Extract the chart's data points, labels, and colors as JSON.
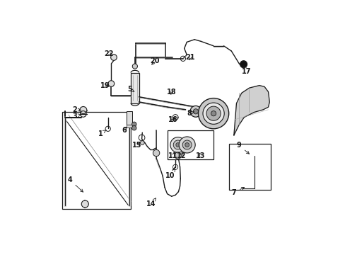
{
  "bg_color": "#ffffff",
  "line_color": "#1a1a1a",
  "fig_width": 4.89,
  "fig_height": 3.6,
  "dpi": 100,
  "label_arrows": {
    "1": {
      "lxy": [
        0.215,
        0.475
      ],
      "pxy": [
        0.245,
        0.495
      ]
    },
    "2": {
      "lxy": [
        0.115,
        0.57
      ],
      "pxy": [
        0.148,
        0.568
      ]
    },
    "3": {
      "lxy": [
        0.115,
        0.545
      ],
      "pxy": [
        0.148,
        0.553
      ]
    },
    "4": {
      "lxy": [
        0.095,
        0.295
      ],
      "pxy": [
        0.155,
        0.24
      ]
    },
    "5": {
      "lxy": [
        0.33,
        0.65
      ],
      "pxy": [
        0.35,
        0.64
      ]
    },
    "6": {
      "lxy": [
        0.31,
        0.49
      ],
      "pxy": [
        0.325,
        0.51
      ]
    },
    "7": {
      "lxy": [
        0.74,
        0.245
      ],
      "pxy": [
        0.79,
        0.27
      ]
    },
    "8": {
      "lxy": [
        0.565,
        0.555
      ],
      "pxy": [
        0.585,
        0.562
      ]
    },
    "9": {
      "lxy": [
        0.76,
        0.43
      ],
      "pxy": [
        0.808,
        0.39
      ]
    },
    "10": {
      "lxy": [
        0.49,
        0.31
      ],
      "pxy": [
        0.51,
        0.34
      ]
    },
    "11": {
      "lxy": [
        0.5,
        0.39
      ],
      "pxy": [
        0.515,
        0.408
      ]
    },
    "12": {
      "lxy": [
        0.535,
        0.39
      ],
      "pxy": [
        0.545,
        0.408
      ]
    },
    "13": {
      "lxy": [
        0.61,
        0.39
      ],
      "pxy": [
        0.6,
        0.408
      ]
    },
    "14": {
      "lxy": [
        0.415,
        0.2
      ],
      "pxy": [
        0.435,
        0.225
      ]
    },
    "15": {
      "lxy": [
        0.36,
        0.43
      ],
      "pxy": [
        0.378,
        0.448
      ]
    },
    "16": {
      "lxy": [
        0.5,
        0.53
      ],
      "pxy": [
        0.512,
        0.54
      ]
    },
    "17": {
      "lxy": [
        0.79,
        0.72
      ],
      "pxy": [
        0.778,
        0.745
      ]
    },
    "18": {
      "lxy": [
        0.495,
        0.64
      ],
      "pxy": [
        0.49,
        0.62
      ]
    },
    "19": {
      "lxy": [
        0.235,
        0.665
      ],
      "pxy": [
        0.258,
        0.658
      ]
    },
    "20": {
      "lxy": [
        0.43,
        0.76
      ],
      "pxy": [
        0.41,
        0.74
      ]
    },
    "21": {
      "lxy": [
        0.568,
        0.775
      ],
      "pxy": [
        0.565,
        0.755
      ]
    },
    "22": {
      "lxy": [
        0.25,
        0.79
      ],
      "pxy": [
        0.265,
        0.775
      ]
    }
  }
}
